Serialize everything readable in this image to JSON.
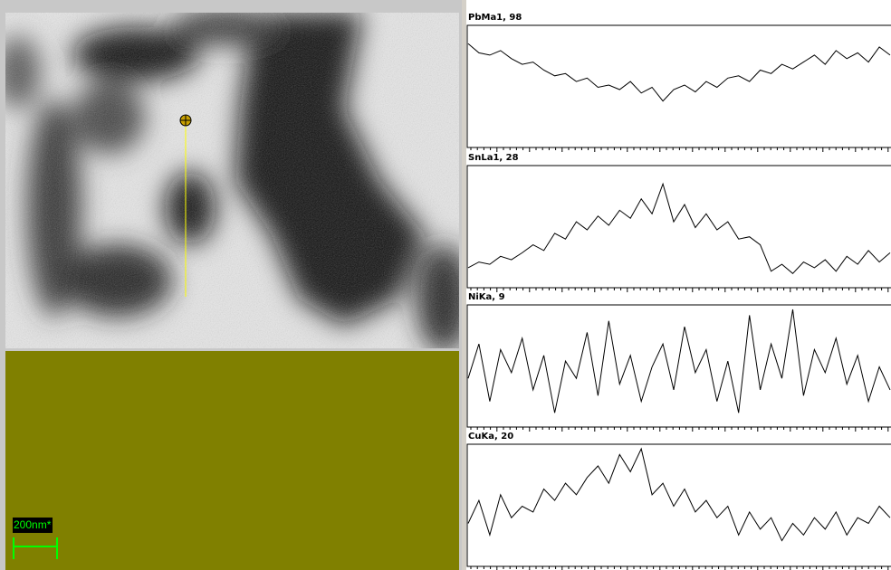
{
  "scale_bar": {
    "label": "200nm*"
  },
  "panels": [
    {
      "label": "PbMa1, 98",
      "values": [
        88,
        80,
        78,
        82,
        75,
        70,
        72,
        65,
        60,
        62,
        55,
        58,
        50,
        52,
        48,
        55,
        45,
        50,
        38,
        48,
        52,
        46,
        55,
        50,
        58,
        60,
        55,
        65,
        62,
        70,
        66,
        72,
        78,
        70,
        82,
        75,
        80,
        72,
        85,
        78
      ]
    },
    {
      "label": "SnLa1, 28",
      "values": [
        15,
        20,
        18,
        25,
        22,
        28,
        35,
        30,
        45,
        40,
        55,
        48,
        60,
        52,
        65,
        58,
        75,
        62,
        88,
        55,
        70,
        50,
        62,
        48,
        55,
        40,
        42,
        35,
        12,
        18,
        10,
        20,
        15,
        22,
        12,
        25,
        18,
        30,
        20,
        28
      ]
    },
    {
      "label": "NiKa, 9",
      "values": [
        40,
        70,
        20,
        65,
        45,
        75,
        30,
        60,
        10,
        55,
        40,
        80,
        25,
        90,
        35,
        60,
        20,
        50,
        70,
        30,
        85,
        45,
        65,
        20,
        55,
        10,
        95,
        30,
        70,
        40,
        100,
        25,
        65,
        45,
        75,
        35,
        60,
        20,
        50,
        30
      ]
    },
    {
      "label": "CuKa, 20",
      "values": [
        35,
        55,
        25,
        60,
        40,
        50,
        45,
        65,
        55,
        70,
        60,
        75,
        85,
        70,
        95,
        80,
        100,
        60,
        70,
        50,
        65,
        45,
        55,
        40,
        50,
        25,
        45,
        30,
        40,
        20,
        35,
        25,
        40,
        30,
        45,
        25,
        40,
        35,
        50,
        40
      ]
    }
  ]
}
